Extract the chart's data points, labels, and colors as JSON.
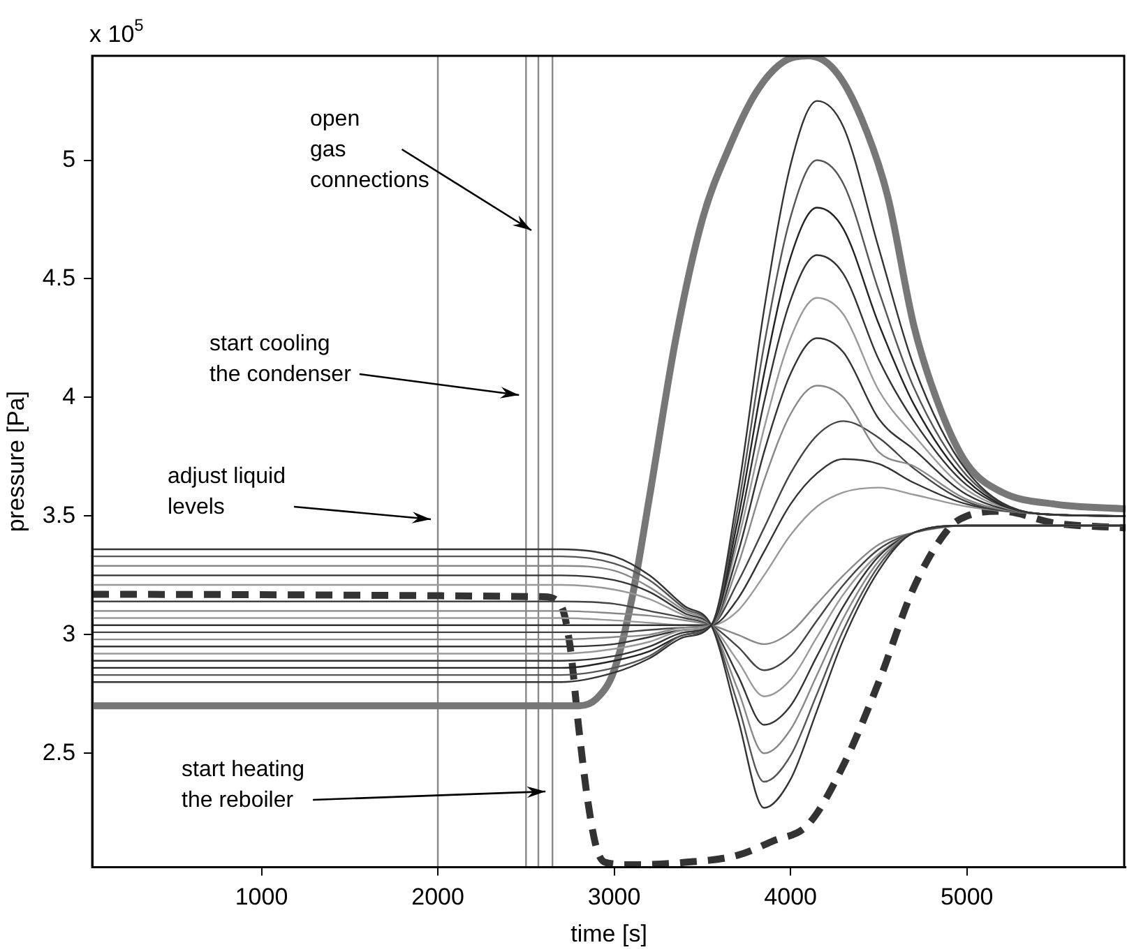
{
  "chart_data": {
    "type": "line",
    "xlabel": "time [s]",
    "ylabel": "pressure [Pa]",
    "annotations": [
      "x 10$^{5}$"
    ],
    "xlim": [
      40,
      5900
    ],
    "xticks": [
      1000,
      2000,
      3000,
      4000,
      5000
    ],
    "ylim": [
      2.02,
      5.44
    ],
    "yticks": [
      2.5,
      3,
      3.5,
      4,
      4.5,
      5
    ],
    "grid": false,
    "legend": false,
    "marker": "none",
    "ref_lines": [
      {
        "axis": "x",
        "value": 2000,
        "color": "#888888",
        "label": "adjust liquid levels"
      },
      {
        "axis": "x",
        "value": 2500,
        "color": "#888888",
        "label": "start cooling the condenser"
      },
      {
        "axis": "x",
        "value": 2570,
        "color": "#888888",
        "label": "open gas connections"
      },
      {
        "axis": "x",
        "value": 2650,
        "color": "#888888",
        "label": "start heating the reboiler"
      }
    ],
    "x": [
      40,
      2700,
      3000,
      3200,
      3400,
      3550,
      3700,
      3850,
      4000,
      4150,
      4300,
      4500,
      4700,
      5000,
      5400,
      5900
    ],
    "series": [
      {
        "color": "#333333",
        "values": [
          2.8,
          2.8,
          2.84,
          2.9,
          2.99,
          3.04,
          3.59,
          4.37,
          4.98,
          5.25,
          5.14,
          4.63,
          4.13,
          3.69,
          3.51,
          3.5
        ]
      },
      {
        "color": "#555555",
        "values": [
          2.83,
          2.83,
          2.86,
          2.91,
          3.0,
          3.04,
          3.53,
          4.22,
          4.76,
          5.0,
          4.9,
          4.45,
          4.04,
          3.67,
          3.51,
          3.5
        ]
      },
      {
        "color": "#222222",
        "values": [
          2.86,
          2.86,
          2.89,
          2.93,
          3.0,
          3.04,
          3.48,
          4.1,
          4.59,
          4.8,
          4.71,
          4.31,
          3.97,
          3.65,
          3.51,
          3.5
        ]
      },
      {
        "color": "#333333",
        "values": [
          2.89,
          2.89,
          2.91,
          2.95,
          3.01,
          3.04,
          3.43,
          3.98,
          4.41,
          4.6,
          4.52,
          4.16,
          3.9,
          3.63,
          3.51,
          3.5
        ]
      },
      {
        "color": "#999999",
        "values": [
          2.92,
          2.92,
          2.94,
          2.97,
          3.02,
          3.04,
          3.39,
          3.87,
          4.25,
          4.42,
          4.35,
          4.03,
          3.84,
          3.61,
          3.51,
          3.5
        ]
      },
      {
        "color": "#333333",
        "values": [
          2.95,
          2.95,
          2.96,
          2.99,
          3.02,
          3.04,
          3.34,
          3.77,
          4.1,
          4.25,
          4.19,
          3.91,
          3.78,
          3.59,
          3.51,
          3.5
        ]
      },
      {
        "color": "#888888",
        "values": [
          2.98,
          2.98,
          2.99,
          3.0,
          3.03,
          3.04,
          3.29,
          3.65,
          3.93,
          4.05,
          4.0,
          3.77,
          3.71,
          3.57,
          3.51,
          3.5
        ]
      },
      {
        "color": "#444444",
        "values": [
          3.01,
          3.01,
          3.01,
          3.02,
          3.03,
          3.04,
          3.22,
          3.45,
          3.68,
          3.84,
          3.9,
          3.83,
          3.7,
          3.56,
          3.51,
          3.5
        ]
      },
      {
        "color": "#333333",
        "values": [
          3.04,
          3.04,
          3.04,
          3.04,
          3.04,
          3.04,
          3.15,
          3.35,
          3.55,
          3.68,
          3.74,
          3.72,
          3.64,
          3.55,
          3.51,
          3.5
        ]
      },
      {
        "color": "#999999",
        "values": [
          3.07,
          3.07,
          3.06,
          3.05,
          3.04,
          3.04,
          3.1,
          3.25,
          3.42,
          3.54,
          3.6,
          3.62,
          3.59,
          3.54,
          3.51,
          3.5
        ]
      },
      {
        "color": "#333333",
        "values": [
          3.36,
          3.36,
          3.33,
          3.25,
          3.12,
          3.04,
          2.65,
          2.27,
          2.39,
          2.68,
          2.98,
          3.27,
          3.43,
          3.46,
          3.46,
          3.46
        ]
      },
      {
        "color": "#555555",
        "values": [
          3.33,
          3.33,
          3.3,
          3.23,
          3.11,
          3.04,
          2.71,
          2.38,
          2.49,
          2.75,
          3.02,
          3.29,
          3.43,
          3.46,
          3.46,
          3.46
        ]
      },
      {
        "color": "#888888",
        "values": [
          3.29,
          3.29,
          3.27,
          3.2,
          3.1,
          3.04,
          2.77,
          2.5,
          2.6,
          2.83,
          3.07,
          3.31,
          3.43,
          3.46,
          3.46,
          3.46
        ]
      },
      {
        "color": "#333333",
        "values": [
          3.25,
          3.25,
          3.23,
          3.18,
          3.09,
          3.04,
          2.83,
          2.62,
          2.7,
          2.91,
          3.12,
          3.33,
          3.43,
          3.46,
          3.46,
          3.46
        ]
      },
      {
        "color": "#999999",
        "values": [
          3.21,
          3.21,
          3.19,
          3.15,
          3.08,
          3.04,
          2.89,
          2.74,
          2.81,
          2.99,
          3.17,
          3.34,
          3.43,
          3.46,
          3.46,
          3.46
        ]
      },
      {
        "color": "#444444",
        "values": [
          3.14,
          3.14,
          3.13,
          3.1,
          3.07,
          3.04,
          2.95,
          2.85,
          2.91,
          3.06,
          3.21,
          3.36,
          3.43,
          3.46,
          3.46,
          3.46
        ]
      },
      {
        "color": "#888888",
        "values": [
          3.1,
          3.1,
          3.09,
          3.08,
          3.06,
          3.04,
          3.0,
          2.96,
          3.01,
          3.13,
          3.25,
          3.38,
          3.43,
          3.46,
          3.46,
          3.46
        ]
      },
      {
        "color": "#777777",
        "x": [
          40,
          2800,
          2900,
          3000,
          3100,
          3200,
          3350,
          3500,
          3650,
          3800,
          3950,
          4100,
          4250,
          4400,
          4550,
          4700,
          4850,
          5000,
          5200,
          5500,
          5900
        ],
        "values": [
          2.7,
          2.7,
          2.73,
          2.85,
          3.15,
          3.58,
          4.25,
          4.75,
          5.05,
          5.28,
          5.41,
          5.44,
          5.38,
          5.18,
          4.85,
          4.3,
          3.95,
          3.72,
          3.6,
          3.55,
          3.53
        ]
      },
      {
        "color": "#333333",
        "line_style": "dashed",
        "x": [
          40,
          2600,
          2700,
          2750,
          2800,
          2850,
          2900,
          2950,
          3100,
          3400,
          3700,
          3900,
          4100,
          4300,
          4500,
          4700,
          4900,
          5000,
          5200,
          5500,
          5900
        ],
        "values": [
          3.17,
          3.16,
          3.12,
          2.95,
          2.6,
          2.3,
          2.1,
          2.04,
          2.03,
          2.04,
          2.07,
          2.13,
          2.2,
          2.45,
          2.8,
          3.2,
          3.45,
          3.5,
          3.52,
          3.47,
          3.45
        ]
      }
    ]
  }
}
